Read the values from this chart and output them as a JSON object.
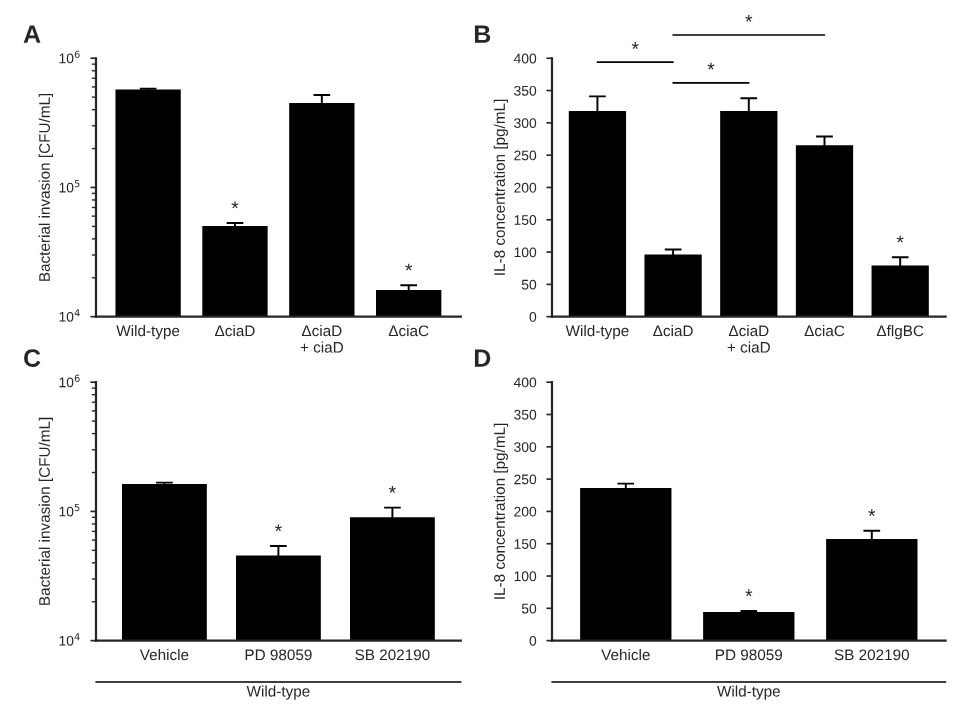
{
  "chart_data": [
    {
      "type": "bar",
      "title": "A",
      "ylabel": "Bacterial invasion [CFU/mL]",
      "categories": [
        "Wild-type",
        "ΔciaD",
        "ΔciaD\n+ ciaD",
        "ΔciaC"
      ],
      "color": "#000000",
      "values": [
        560000,
        49000,
        440000,
        15700
      ],
      "errors": [
        20000,
        4000,
        80000,
        1800
      ],
      "log": true,
      "ylim": [
        10000,
        1000000
      ],
      "yticks": [
        {
          "value": 10000,
          "label": "10$^{4}$"
        },
        {
          "value": 100000,
          "label": "10$^{5}$"
        },
        {
          "value": 1000000,
          "label": "10$^{6}$"
        }
      ],
      "annotations": [
        {
          "text": "*",
          "x": "ΔciaD",
          "y": 53000
        },
        {
          "text": "*",
          "x": "ΔciaC",
          "y": 17500
        }
      ]
    },
    {
      "type": "bar",
      "title": "B",
      "ylabel": "IL-8 concentration [pg/mL]",
      "categories": [
        "Wild-type",
        "ΔciaD",
        "ΔciaD\n+ ciaD",
        "ΔciaC",
        "ΔflgBC"
      ],
      "color": "#000000",
      "values": [
        316,
        94,
        316,
        263,
        77
      ],
      "errors": [
        25,
        10,
        22,
        16,
        15
      ],
      "ylim": [
        0,
        400
      ],
      "yticks": [
        0,
        50,
        100,
        150,
        200,
        250,
        300,
        350,
        400
      ],
      "annotations": [
        "*",
        "*",
        "*",
        {
          "text": "*",
          "x": "ΔflgBC",
          "y": 92
        }
      ]
    },
    {
      "type": "bar",
      "title": "C",
      "ylabel": "Bacterial invasion [CFU/mL]",
      "xlabel": "Wild-type",
      "categories": [
        "Vehicle",
        "PD 98059",
        "SB 202190"
      ],
      "color": "#000000",
      "values": [
        159000,
        44500,
        88000
      ],
      "errors": [
        8000,
        9500,
        19000
      ],
      "log": true,
      "ylim": [
        10000,
        1000000
      ],
      "yticks": [
        {
          "value": 10000,
          "label": "10$^{4}$"
        },
        {
          "value": 100000,
          "label": "10$^{5}$"
        },
        {
          "value": 1000000,
          "label": "10$^{6}$"
        }
      ],
      "annotations": [
        {
          "text": "*",
          "x": "PD 98059",
          "y": 54000
        },
        {
          "text": "*",
          "x": "SB 202190",
          "y": 107000
        }
      ]
    },
    {
      "type": "bar",
      "title": "D",
      "ylabel": "IL-8 concentration [pg/mL]",
      "xlabel": "Wild-type",
      "categories": [
        "Vehicle",
        "PD 98059",
        "SB 202190"
      ],
      "color": "#000000",
      "values": [
        234,
        42,
        155
      ],
      "errors": [
        9,
        4,
        15
      ],
      "ylim": [
        0,
        400
      ],
      "yticks": [
        0,
        50,
        100,
        150,
        200,
        250,
        300,
        350,
        400
      ],
      "annotations": [
        {
          "text": "*",
          "x": "PD 98059",
          "y": 46
        },
        {
          "text": "*",
          "x": "SB 202190",
          "y": 170
        }
      ]
    }
  ]
}
